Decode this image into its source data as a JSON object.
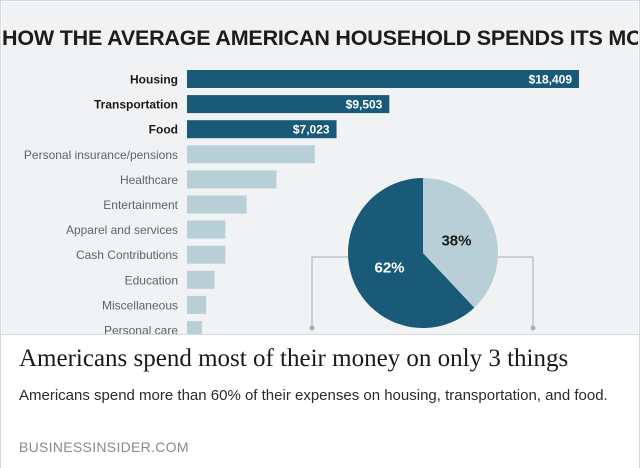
{
  "chart_data": [
    {
      "type": "bar",
      "orientation": "horizontal",
      "title": "HOW THE AVERAGE AMERICAN HOUSEHOLD SPENDS ITS MONEY",
      "categories": [
        "Housing",
        "Transportation",
        "Food",
        "Personal insurance/pensions",
        "Healthcare",
        "Entertainment",
        "Apparel and services",
        "Cash Contributions",
        "Education",
        "Miscellaneous",
        "Personal care"
      ],
      "values": [
        18409,
        9503,
        7023,
        6000,
        4200,
        2800,
        1800,
        1800,
        1300,
        900,
        700
      ],
      "value_labels": [
        "$18,409",
        "$9,503",
        "$7,023",
        "",
        "",
        "",
        "",
        "",
        "",
        "",
        ""
      ],
      "highlighted_count": 3,
      "colors": {
        "highlight": "#195a78",
        "muted": "#b9cfd8"
      }
    },
    {
      "type": "pie",
      "slices": [
        {
          "label": "62%",
          "value": 62,
          "color": "#195a78"
        },
        {
          "label": "38%",
          "value": 38,
          "color": "#b9cfd8"
        }
      ]
    }
  ],
  "caption": {
    "headline": "Americans spend most of their money on only 3 things",
    "description": "Americans spend more than 60% of their expenses on housing, transportation, and food.",
    "source": "BUSINESSINSIDER.COM"
  }
}
